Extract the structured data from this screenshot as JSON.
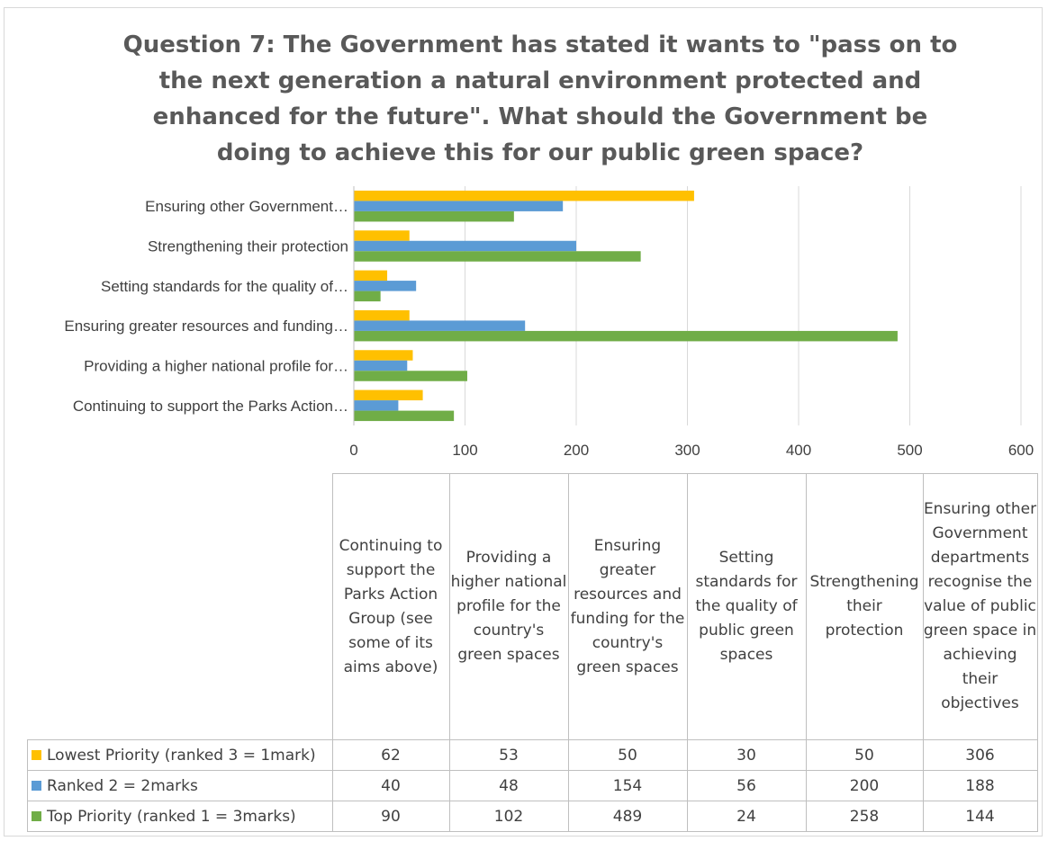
{
  "chart_data": {
    "type": "bar",
    "orientation": "horizontal",
    "title": "Question 7: The Government has stated it wants to \"pass on to the next generation a natural environment protected and enhanced for the future\". What should the Government be doing to achieve this for our public green space?",
    "axis_categories": [
      "Continuing to support the Parks Action…",
      "Providing a higher national profile for…",
      "Ensuring greater resources and funding…",
      "Setting standards for the quality of…",
      "Strengthening their protection",
      "Ensuring other Government…"
    ],
    "table_categories": [
      "Continuing to support the Parks Action Group (see some of its aims above)",
      "Providing a higher national profile for the country's green spaces",
      "Ensuring greater resources and funding for the country's green spaces",
      "Setting standards for the quality of public green spaces",
      "Strengthening their protection",
      "Ensuring other Government departments recognise the value of public green space in achieving their objectives"
    ],
    "series": [
      {
        "name": "Lowest Priority (ranked 3 = 1mark)",
        "color": "#ffc000",
        "values": [
          62,
          53,
          50,
          30,
          50,
          306
        ]
      },
      {
        "name": "Ranked 2 = 2marks",
        "color": "#5b9bd5",
        "values": [
          40,
          48,
          154,
          56,
          200,
          188
        ]
      },
      {
        "name": "Top Priority (ranked 1 = 3marks)",
        "color": "#70ad47",
        "values": [
          90,
          102,
          489,
          24,
          258,
          144
        ]
      }
    ],
    "xlim": [
      0,
      600
    ],
    "xticks": [
      0,
      100,
      200,
      300,
      400,
      500,
      600
    ],
    "grid": true,
    "legend": "data table"
  }
}
